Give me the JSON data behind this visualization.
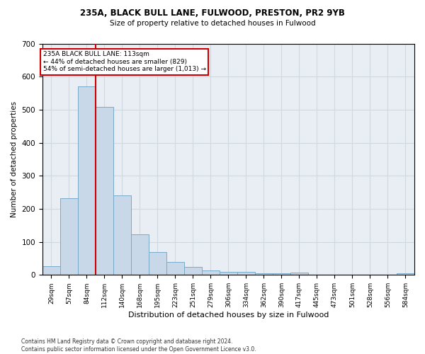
{
  "title1": "235A, BLACK BULL LANE, FULWOOD, PRESTON, PR2 9YB",
  "title2": "Size of property relative to detached houses in Fulwood",
  "xlabel": "Distribution of detached houses by size in Fulwood",
  "ylabel": "Number of detached properties",
  "footnote": "Contains HM Land Registry data © Crown copyright and database right 2024.\nContains public sector information licensed under the Open Government Licence v3.0.",
  "categories": [
    "29sqm",
    "57sqm",
    "84sqm",
    "112sqm",
    "140sqm",
    "168sqm",
    "195sqm",
    "223sqm",
    "251sqm",
    "279sqm",
    "306sqm",
    "334sqm",
    "362sqm",
    "390sqm",
    "417sqm",
    "445sqm",
    "473sqm",
    "501sqm",
    "528sqm",
    "556sqm",
    "584sqm"
  ],
  "values": [
    26,
    232,
    570,
    508,
    240,
    123,
    70,
    40,
    25,
    14,
    10,
    10,
    5,
    4,
    7,
    0,
    0,
    0,
    0,
    0,
    6
  ],
  "bar_color": "#c8d8e8",
  "bar_edge_color": "#7aaac8",
  "marker_line_color": "#cc0000",
  "marker_label_line1": "235A BLACK BULL LANE: 113sqm",
  "marker_label_line2": "← 44% of detached houses are smaller (829)",
  "marker_label_line3": "54% of semi-detached houses are larger (1,013) →",
  "annotation_box_color": "#ffffff",
  "annotation_box_edge": "#cc0000",
  "ylim": [
    0,
    700
  ],
  "grid_color": "#d0d8e0",
  "bg_color": "#e8eef4"
}
